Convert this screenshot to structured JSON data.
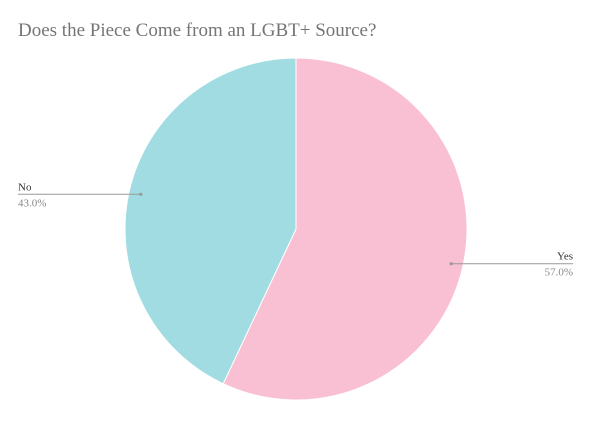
{
  "chart_data": {
    "type": "pie",
    "title": "Does the Piece Come from an LGBT+ Source?",
    "slices": [
      {
        "label": "Yes",
        "value": 57.0,
        "display": "57.0%",
        "color": "#f9bfd3"
      },
      {
        "label": "No",
        "value": 43.0,
        "display": "43.0%",
        "color": "#a0dce2"
      }
    ],
    "start_angle_deg": 0,
    "direction": "clockwise",
    "legend": "none",
    "leader_line_color": "#999999"
  }
}
